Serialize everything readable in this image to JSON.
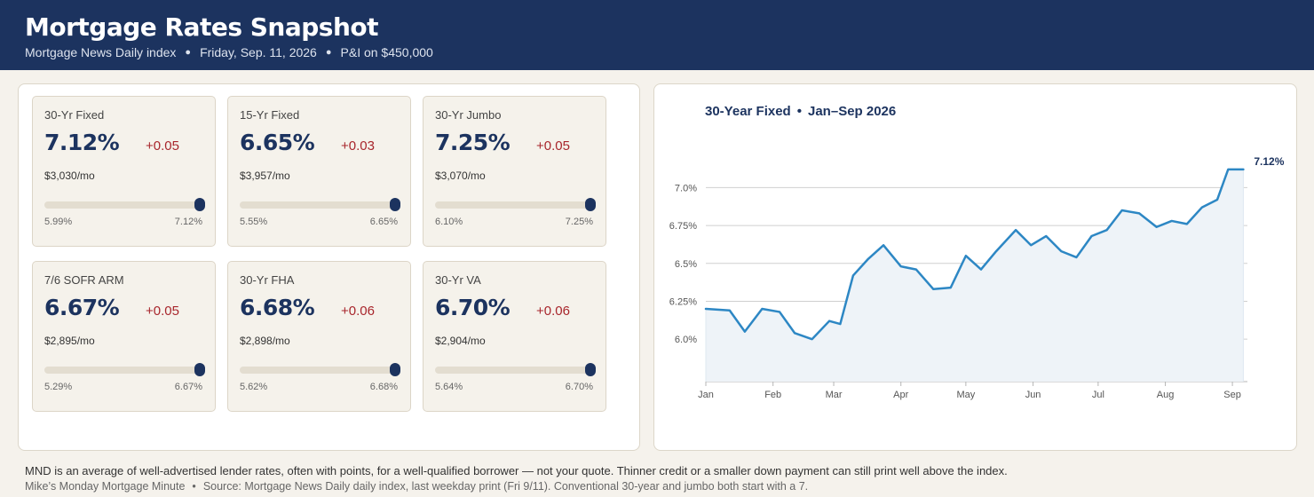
{
  "header": {
    "title": "Mortgage Rates Snapshot",
    "source": "Mortgage News Daily index",
    "date": "Friday, Sep. 11, 2026",
    "basis": "P&I on $450,000"
  },
  "cards": [
    {
      "name": "30-Yr Fixed",
      "rate": "7.12%",
      "change": "+0.05",
      "payment": "$3,030/mo",
      "low": "5.99%",
      "high": "7.12%",
      "position": 1.0
    },
    {
      "name": "15-Yr Fixed",
      "rate": "6.65%",
      "change": "+0.03",
      "payment": "$3,957/mo",
      "low": "5.55%",
      "high": "6.65%",
      "position": 1.0
    },
    {
      "name": "30-Yr Jumbo",
      "rate": "7.25%",
      "change": "+0.05",
      "payment": "$3,070/mo",
      "low": "6.10%",
      "high": "7.25%",
      "position": 1.0
    },
    {
      "name": "7/6 SOFR ARM",
      "rate": "6.67%",
      "change": "+0.05",
      "payment": "$2,895/mo",
      "low": "5.29%",
      "high": "6.67%",
      "position": 1.0
    },
    {
      "name": "30-Yr FHA",
      "rate": "6.68%",
      "change": "+0.06",
      "payment": "$2,898/mo",
      "low": "5.62%",
      "high": "6.68%",
      "position": 1.0
    },
    {
      "name": "30-Yr VA",
      "rate": "6.70%",
      "change": "+0.06",
      "payment": "$2,904/mo",
      "low": "5.64%",
      "high": "6.70%",
      "position": 1.0
    }
  ],
  "chart_data": {
    "type": "area",
    "title": "30-Year Fixed",
    "subtitle": "Jan–Sep 2026",
    "xlabel": "",
    "ylabel": "",
    "ylim": [
      5.72,
      7.33
    ],
    "xlim": [
      0,
      35.7
    ],
    "month_ticks": [
      {
        "label": "Jan",
        "pos": 0
      },
      {
        "label": "Feb",
        "pos": 4.43
      },
      {
        "label": "Mar",
        "pos": 8.43
      },
      {
        "label": "Apr",
        "pos": 12.86
      },
      {
        "label": "May",
        "pos": 17.14
      },
      {
        "label": "Jun",
        "pos": 21.57
      },
      {
        "label": "Jul",
        "pos": 25.86
      },
      {
        "label": "Aug",
        "pos": 30.29
      },
      {
        "label": "Sep",
        "pos": 34.71
      }
    ],
    "y_ticks": [
      {
        "value": 6.0,
        "label": "6.0%"
      },
      {
        "value": 6.25,
        "label": "6.25%"
      },
      {
        "value": 6.5,
        "label": "6.5%"
      },
      {
        "value": 6.75,
        "label": "6.75%"
      },
      {
        "value": 7.0,
        "label": "7.0%"
      }
    ],
    "series": [
      {
        "x": [
          0,
          1.57,
          2.57,
          3.71,
          4.86,
          5.86,
          7.0,
          8.14,
          8.86,
          9.71,
          10.71,
          11.71,
          12.86,
          13.86,
          15.0,
          16.14,
          17.14,
          18.14,
          19.14,
          20.43,
          21.43,
          22.43,
          23.43,
          24.43,
          25.43,
          26.43,
          27.43,
          28.57,
          29.71,
          30.71,
          31.71,
          32.71,
          33.71,
          34.43,
          35.0,
          35.43
        ],
        "y": [
          6.2,
          6.19,
          6.05,
          6.2,
          6.18,
          6.04,
          6.0,
          6.12,
          6.1,
          6.42,
          6.53,
          6.62,
          6.48,
          6.46,
          6.33,
          6.34,
          6.55,
          6.46,
          6.58,
          6.72,
          6.62,
          6.68,
          6.58,
          6.54,
          6.68,
          6.72,
          6.85,
          6.83,
          6.74,
          6.78,
          6.76,
          6.87,
          6.92,
          7.12,
          7.12,
          7.12
        ]
      }
    ],
    "end_label": "7.12%",
    "grid": true,
    "colors": {
      "line": "#2d87c4",
      "fill": "#eef3f8",
      "grid": "#cfcfcf"
    }
  },
  "footer": {
    "note": "MND is an average of well-advertised lender rates, often with points, for a well-qualified borrower — not your quote. Thinner credit or a smaller down payment can still print well above the index.",
    "credit": "Mike’s Monday Mortgage Minute",
    "source": "Source: Mortgage News Daily daily index, last weekday print (Fri 9/11). Conventional 30-year and jumbo both start with a 7."
  }
}
